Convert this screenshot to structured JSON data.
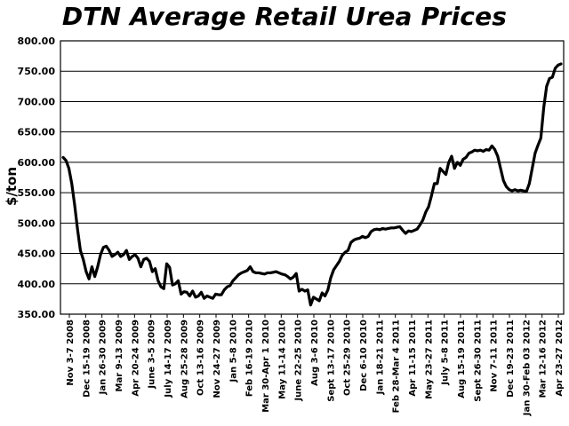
{
  "chart_data": {
    "type": "line",
    "title": "DTN Average Retail Urea Prices",
    "xlabel": "",
    "ylabel": "$/ton",
    "ylim": [
      350,
      800
    ],
    "yticks": [
      "350.00",
      "400.00",
      "450.00",
      "500.00",
      "550.00",
      "600.00",
      "650.00",
      "700.00",
      "750.00",
      "800.00"
    ],
    "grid": true,
    "legend": "none",
    "x_ticks": [
      "Nov 3-7 2008",
      "Dec 15-19 2008",
      "Jan 26-30 2009",
      "Mar 9-13 2009",
      "Apr 20-24 2009",
      "June 3-5 2009",
      "July 14-17 2009",
      "Aug 25-28 2009",
      "Oct 13-16 2009",
      "Nov 24-27 2009",
      "Jan 5-8 2010",
      "Feb 16-19 2010",
      "Mar 30-Apr 1 2010",
      "May 11-14 2010",
      "June 22-25 2010",
      "Aug 3-6 2010",
      "Sept 13-17 2010",
      "Oct 25-29 2010",
      "Dec 6-10 2010",
      "Jan 18-21 2011",
      "Feb 28-Mar 4 2011",
      "Apr 11-15 2011",
      "May 23-27 2011",
      "July 5-8 2011",
      "Aug 15-19 2011",
      "Sept 26-30 2011",
      "Nov 7-11 2011",
      "Dec 19-23 2011",
      "Jan 30-Feb 03 2012",
      "Mar 12-16 2012",
      "Apr 23-27 2012"
    ],
    "series": [
      {
        "values": [
          608,
          603,
          590,
          565,
          530,
          490,
          455,
          440,
          420,
          408,
          428,
          412,
          428,
          448,
          460,
          462,
          455,
          445,
          448,
          452,
          445,
          448,
          455,
          440,
          445,
          448,
          442,
          428,
          440,
          442,
          437,
          420,
          425,
          405,
          395,
          392,
          433,
          427,
          398,
          400,
          405,
          383,
          387,
          386,
          380,
          388,
          378,
          380,
          386,
          376,
          380,
          378,
          376,
          383,
          382,
          382,
          390,
          395,
          397,
          405,
          410,
          415,
          418,
          420,
          422,
          428,
          420,
          418,
          418,
          417,
          416,
          418,
          418,
          419,
          420,
          418,
          416,
          415,
          412,
          408,
          411,
          417,
          388,
          391,
          388,
          390,
          365,
          378,
          375,
          372,
          385,
          380,
          390,
          410,
          423,
          430,
          437,
          447,
          452,
          455,
          468,
          472,
          474,
          475,
          478,
          476,
          478,
          486,
          489,
          490,
          489,
          491,
          490,
          491,
          492,
          492,
          493,
          494,
          488,
          483,
          487,
          486,
          488,
          490,
          497,
          505,
          518,
          527,
          545,
          565,
          565,
          590,
          585,
          580,
          600,
          610,
          590,
          600,
          595,
          605,
          608,
          615,
          617,
          620,
          619,
          620,
          618,
          621,
          620,
          627,
          621,
          610,
          590,
          570,
          560,
          555,
          553,
          555,
          553,
          554,
          553,
          552,
          565,
          590,
          615,
          628,
          640,
          690,
          725,
          738,
          740,
          755,
          760,
          762
        ]
      }
    ]
  }
}
